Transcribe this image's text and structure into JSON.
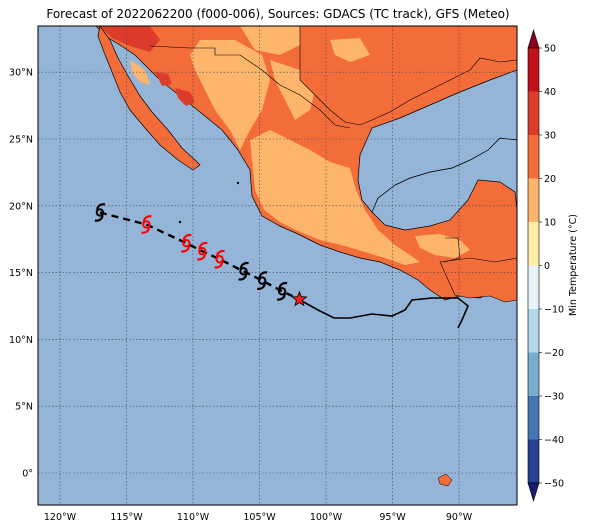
{
  "title": "Forecast of 2022062200 (f000-006), Sources: GDACS (TC track), GFS (Meteo)",
  "colorbar": {
    "label": "Min Temperature (°C)",
    "ticks": [
      "50",
      "40",
      "30",
      "20",
      "10",
      "0",
      "−10",
      "−20",
      "−30",
      "−40",
      "−50"
    ],
    "colors": [
      "#8b0021",
      "#c1121c",
      "#de3c2a",
      "#f26d3a",
      "#fdb56b",
      "#feeda3",
      "#e6f4f8",
      "#b1d9ea",
      "#77aed2",
      "#4575b4",
      "#293f93",
      "#1c1c6e"
    ]
  },
  "lon_labels": [
    "120°W",
    "115°W",
    "110°W",
    "105°W",
    "100°W",
    "95°W",
    "90°W"
  ],
  "lat_labels": [
    "30°N",
    "25°N",
    "20°N",
    "15°N",
    "10°N",
    "5°N",
    "0°"
  ],
  "track": {
    "symbol": "tropical-cyclone-icon",
    "current_marker": "star",
    "points": [
      {
        "lon": -117.0,
        "lat": 19.5,
        "color": "#000000"
      },
      {
        "lon": -113.5,
        "lat": 18.6,
        "color": "#ff0000"
      },
      {
        "lon": -110.5,
        "lat": 17.2,
        "color": "#ff0000"
      },
      {
        "lon": -109.3,
        "lat": 16.6,
        "color": "#ff0000"
      },
      {
        "lon": -108.0,
        "lat": 16.0,
        "color": "#ff0000"
      },
      {
        "lon": -106.2,
        "lat": 15.1,
        "color": "#000000"
      },
      {
        "lon": -104.8,
        "lat": 14.4,
        "color": "#000000"
      },
      {
        "lon": -103.3,
        "lat": 13.6,
        "color": "#000000"
      }
    ],
    "star": {
      "lon": -102.0,
      "lat": 13.0
    }
  },
  "colors": {
    "ocean": "#94b5d8",
    "land_hot": "#f26d3a",
    "land_warm": "#fdb56b",
    "land_very_hot": "#de3c2a"
  }
}
